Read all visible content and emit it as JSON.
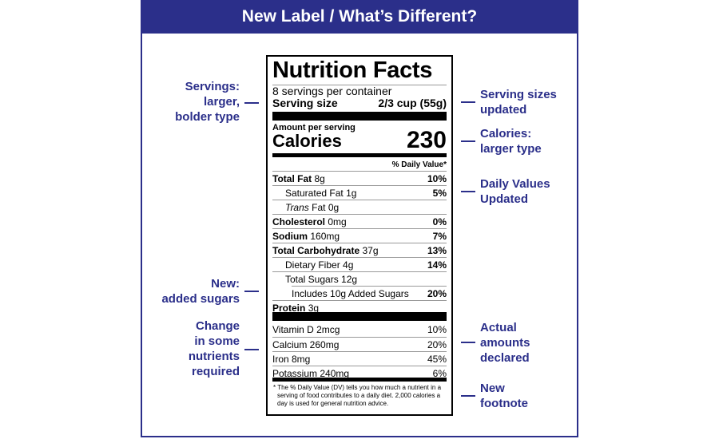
{
  "header": {
    "title": "New Label / What’s Different?"
  },
  "label": {
    "title": "Nutrition Facts",
    "servings_per_container": "8 servings per container",
    "serving_size_label": "Serving size",
    "serving_size_value": "2/3 cup (55g)",
    "amount_per_serving": "Amount per serving",
    "calories_label": "Calories",
    "calories_value": "230",
    "dv_header": "% Daily Value*",
    "nutrients": [
      {
        "name": "Total Fat",
        "amount": "8g",
        "dv": "10%",
        "bold": true,
        "indent": 0
      },
      {
        "name": "Saturated Fat",
        "amount": "1g",
        "dv": "5%",
        "bold": false,
        "indent": 1
      },
      {
        "name": "Trans",
        "amount": "Fat 0g",
        "dv": "",
        "bold": false,
        "indent": 1,
        "italic": true
      },
      {
        "name": "Cholesterol",
        "amount": "0mg",
        "dv": "0%",
        "bold": true,
        "indent": 0
      },
      {
        "name": "Sodium",
        "amount": "160mg",
        "dv": "7%",
        "bold": true,
        "indent": 0
      },
      {
        "name": "Total Carbohydrate",
        "amount": "37g",
        "dv": "13%",
        "bold": true,
        "indent": 0
      },
      {
        "name": "Dietary Fiber",
        "amount": "4g",
        "dv": "14%",
        "bold": false,
        "indent": 1
      },
      {
        "name": "Total Sugars",
        "amount": "12g",
        "dv": "",
        "bold": false,
        "indent": 1
      },
      {
        "name": "Includes 10g Added Sugars",
        "amount": "",
        "dv": "20%",
        "bold": false,
        "indent": 2
      },
      {
        "name": "Protein",
        "amount": "3g",
        "dv": "",
        "bold": true,
        "indent": 0
      }
    ],
    "vitamins": [
      {
        "name": "Vitamin D 2mcg",
        "dv": "10%"
      },
      {
        "name": "Calcium 260mg",
        "dv": "20%"
      },
      {
        "name": "Iron 8mg",
        "dv": "45%"
      },
      {
        "name": "Potassium 240mg",
        "dv": "6%"
      }
    ],
    "footnote": "* The % Daily Value (DV) tells you how much a nutrient in a serving of food contributes to a daily diet. 2,000 calories a day is used for general nutrition advice."
  },
  "annotations": {
    "left": [
      {
        "lines": [
          "Servings:",
          "larger,",
          "bolder type"
        ]
      },
      {
        "lines": [
          "New:",
          "added sugars"
        ]
      },
      {
        "lines": [
          "Change",
          "in some",
          "nutrients",
          "required"
        ]
      }
    ],
    "right": [
      {
        "lines": [
          "Serving sizes",
          "updated"
        ]
      },
      {
        "lines": [
          "Calories:",
          "larger type"
        ]
      },
      {
        "lines": [
          "Daily Values",
          "Updated"
        ]
      },
      {
        "lines": [
          "Actual",
          "amounts",
          "declared"
        ]
      },
      {
        "lines": [
          "New",
          "footnote"
        ]
      }
    ]
  },
  "colors": {
    "accent": "#2b2f8a"
  }
}
